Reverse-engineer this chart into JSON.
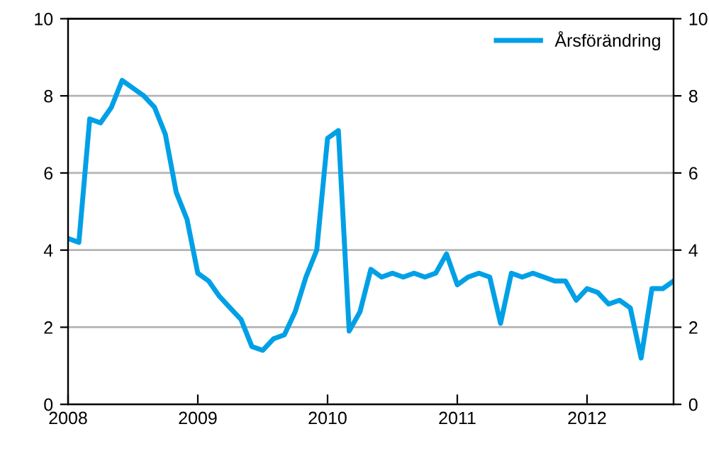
{
  "chart_data": {
    "type": "line",
    "x": [
      "2008-01",
      "2008-02",
      "2008-03",
      "2008-04",
      "2008-05",
      "2008-06",
      "2008-07",
      "2008-08",
      "2008-09",
      "2008-10",
      "2008-11",
      "2008-12",
      "2009-01",
      "2009-02",
      "2009-03",
      "2009-04",
      "2009-05",
      "2009-06",
      "2009-07",
      "2009-08",
      "2009-09",
      "2009-10",
      "2009-11",
      "2009-12",
      "2010-01",
      "2010-02",
      "2010-03",
      "2010-04",
      "2010-05",
      "2010-06",
      "2010-07",
      "2010-08",
      "2010-09",
      "2010-10",
      "2010-11",
      "2010-12",
      "2011-01",
      "2011-02",
      "2011-03",
      "2011-04",
      "2011-05",
      "2011-06",
      "2011-07",
      "2011-08",
      "2011-09",
      "2011-10",
      "2011-11",
      "2011-12",
      "2012-01",
      "2012-02",
      "2012-03",
      "2012-04",
      "2012-05",
      "2012-06",
      "2012-07",
      "2012-08",
      "2012-09"
    ],
    "series": [
      {
        "name": "Årsförändring",
        "color": "#00a0e6",
        "values": [
          4.3,
          4.2,
          7.4,
          7.3,
          7.7,
          8.4,
          8.2,
          8.0,
          7.7,
          7.0,
          5.5,
          4.8,
          3.4,
          3.2,
          2.8,
          2.5,
          2.2,
          1.5,
          1.4,
          1.7,
          1.8,
          2.4,
          3.3,
          4.0,
          6.9,
          7.1,
          1.9,
          2.4,
          3.5,
          3.3,
          3.4,
          3.3,
          3.4,
          3.3,
          3.4,
          3.9,
          3.1,
          3.3,
          3.4,
          3.3,
          2.1,
          3.4,
          3.3,
          3.4,
          3.3,
          3.2,
          3.2,
          2.7,
          3.0,
          2.9,
          2.6,
          2.7,
          2.5,
          1.2,
          3.0,
          3.0,
          3.2
        ]
      }
    ],
    "xlim": [
      "2008-01",
      "2012-09"
    ],
    "xticks": [
      {
        "value": "2008-01",
        "label": "2008"
      },
      {
        "value": "2009-01",
        "label": "2009"
      },
      {
        "value": "2010-01",
        "label": "2010"
      },
      {
        "value": "2011-01",
        "label": "2011"
      },
      {
        "value": "2012-01",
        "label": "2012"
      }
    ],
    "ylim": [
      0,
      10
    ],
    "yticks": [
      0,
      2,
      4,
      6,
      8,
      10
    ],
    "y2lim": [
      0,
      10
    ],
    "y2ticks": [
      0,
      2,
      4,
      6,
      8,
      10
    ],
    "grid": "y",
    "legend": "top right",
    "marker": "none",
    "line_style": "solid"
  }
}
